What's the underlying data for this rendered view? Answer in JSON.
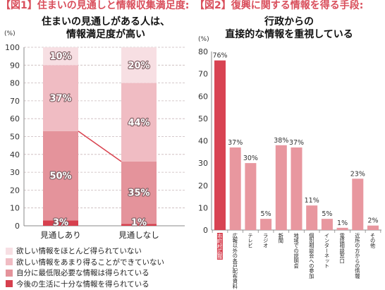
{
  "colors": {
    "title": "#d94f5c",
    "axis": "#8a8a8a",
    "grid": "#c9b8ba",
    "connector": "#d9434f"
  },
  "chart_data": [
    {
      "type": "bar",
      "stacked": true,
      "title": "【図1】住まいの見通しと情報収集満足度:",
      "subtitle": [
        "住まいの見通しがある人は、",
        "情報満足度が高い"
      ],
      "ylabel": "(%)",
      "ylim": [
        0,
        100
      ],
      "yticks": [
        0,
        10,
        20,
        30,
        40,
        50,
        60,
        70,
        80,
        90,
        100
      ],
      "grid": true,
      "legend": "bottom",
      "categories": [
        "見通しあり",
        "見通しなし"
      ],
      "series": [
        {
          "name": "今後の生活に十分な情報を得られている",
          "values": [
            3,
            1
          ],
          "labels": [
            "3%",
            "1%"
          ],
          "color": "#d6404e"
        },
        {
          "name": "自分に最低限必要な情報は得られている",
          "values": [
            50,
            35
          ],
          "labels": [
            "50%",
            "35%"
          ],
          "color": "#e4939b"
        },
        {
          "name": "欲しい情報をあまり得ることができていない",
          "values": [
            37,
            44
          ],
          "labels": [
            "37%",
            "44%"
          ],
          "color": "#f0bcc3"
        },
        {
          "name": "欲しい情報をほとんど得られていない",
          "values": [
            10,
            20
          ],
          "labels": [
            "10%",
            "20%"
          ],
          "color": "#f7dfe3"
        }
      ],
      "connector_line": {
        "values": [
          53,
          36
        ]
      }
    },
    {
      "type": "bar",
      "title": "【図2】復興に関する情報を得る手段:",
      "subtitle": [
        "行政からの",
        "直接的な情報を重視している"
      ],
      "ylabel": "(%)",
      "ylim": [
        0,
        80
      ],
      "yticks": [
        0,
        10,
        20,
        30,
        40,
        50,
        60,
        70,
        80
      ],
      "grid": false,
      "categories": [
        "市町村広報",
        "広報以外の各戸配布資料",
        "テレビ",
        "ラジオ",
        "新聞",
        "地域での説明会",
        "個別相談会への参加",
        "インターネット",
        "電話相談窓口",
        "近所の方からの情報",
        "その他"
      ],
      "values": [
        76,
        37,
        30,
        5,
        38,
        37,
        11,
        5,
        1,
        23,
        2
      ],
      "labels": [
        "76%",
        "37%",
        "30%",
        "5%",
        "38%",
        "37%",
        "11%",
        "5%",
        "1%",
        "23%",
        "2%"
      ],
      "color": "#e8979f",
      "highlight_index": 0,
      "highlight_color": "#d84352"
    }
  ]
}
